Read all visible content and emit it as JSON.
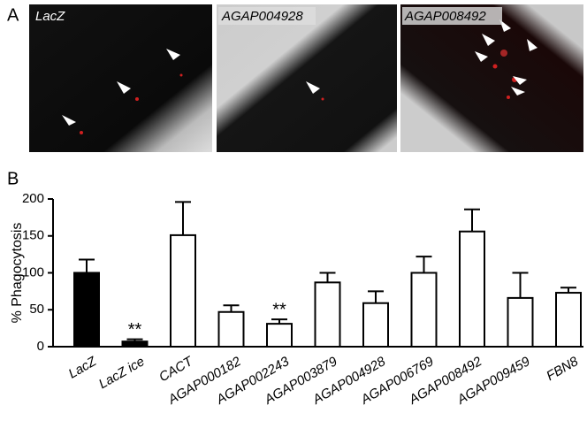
{
  "panel_labels": [
    "A",
    "B"
  ],
  "images": [
    {
      "label": "LacZ"
    },
    {
      "label": "AGAP004928"
    },
    {
      "label": "AGAP008492"
    }
  ],
  "chart_data": {
    "type": "bar",
    "categories": [
      "LacZ",
      "LacZ ice",
      "CACT",
      "AGAP000182",
      "AGAP002243",
      "AGAP003879",
      "AGAP004928",
      "AGAP006769",
      "AGAP008492",
      "AGAP009459",
      "FBN8"
    ],
    "values": [
      100,
      7,
      151,
      47,
      31,
      87,
      59,
      100,
      156,
      66,
      73
    ],
    "errors": [
      18,
      3,
      45,
      9,
      6,
      13,
      16,
      22,
      30,
      34,
      7
    ],
    "colors": [
      "#000000",
      "#000000",
      "#ffffff",
      "#ffffff",
      "#ffffff",
      "#ffffff",
      "#ffffff",
      "#ffffff",
      "#ffffff",
      "#ffffff",
      "#ffffff"
    ],
    "significance": [
      null,
      "**",
      null,
      null,
      "**",
      null,
      null,
      null,
      null,
      null,
      null
    ],
    "ylabel": "% Phagocytosis",
    "ylim": [
      0,
      200
    ],
    "yticks": [
      0,
      50,
      100,
      150,
      200
    ]
  }
}
